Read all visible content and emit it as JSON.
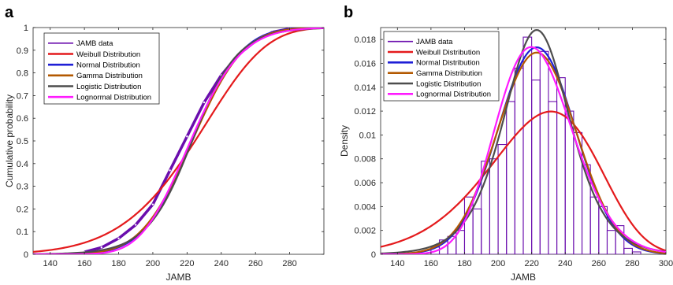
{
  "chart_data": [
    {
      "panel": "a",
      "type": "line",
      "xlabel": "JAMB",
      "ylabel": "Cumulative probability",
      "xlim": [
        130,
        300
      ],
      "ylim": [
        0,
        1
      ],
      "xticks": [
        140,
        160,
        180,
        200,
        220,
        240,
        260,
        280
      ],
      "yticks": [
        0,
        0.1,
        0.2,
        0.3,
        0.4,
        0.5,
        0.6,
        0.7,
        0.8,
        0.9,
        1
      ],
      "legend": "top-left",
      "series": [
        {
          "name": "JAMB data",
          "color": "#6a0dad",
          "kind": "ecdf",
          "x": [
            160,
            170,
            180,
            190,
            200,
            210,
            220,
            230,
            240,
            250,
            260,
            270,
            280,
            290
          ],
          "y": [
            0.01,
            0.03,
            0.07,
            0.13,
            0.22,
            0.37,
            0.52,
            0.67,
            0.79,
            0.88,
            0.94,
            0.98,
            0.995,
            1.0
          ]
        },
        {
          "name": "Weibull Distribution",
          "color": "#e41a1c",
          "kind": "weibull",
          "params": [
            235.8,
            7.6
          ]
        },
        {
          "name": "Normal Distribution",
          "color": "#1f1fd6",
          "kind": "normal",
          "params": [
            223,
            23
          ]
        },
        {
          "name": "Gamma Distribution",
          "color": "#b35900",
          "kind": "normal",
          "params": [
            223,
            23.6
          ]
        },
        {
          "name": "Logistic Distribution",
          "color": "#4d4d4d",
          "kind": "logistic",
          "params": [
            223,
            13.3
          ]
        },
        {
          "name": "Lognormal Distribution",
          "color": "#ff1aff",
          "kind": "lognormal",
          "params": [
            5.403,
            0.104
          ]
        }
      ]
    },
    {
      "panel": "b",
      "type": "bar",
      "xlabel": "JAMB",
      "ylabel": "Density",
      "xlim": [
        130,
        300
      ],
      "ylim": [
        0,
        0.019
      ],
      "xticks": [
        140,
        160,
        180,
        200,
        220,
        240,
        260,
        280,
        300
      ],
      "yticks": [
        0,
        0.002,
        0.004,
        0.006,
        0.008,
        0.01,
        0.012,
        0.014,
        0.016,
        0.018
      ],
      "legend": "top-left",
      "histogram": {
        "name": "JAMB data",
        "color": "#6a0dad",
        "bin_starts": [
          160,
          165,
          170,
          175,
          180,
          185,
          190,
          195,
          200,
          205,
          210,
          215,
          220,
          225,
          230,
          235,
          240,
          245,
          250,
          255,
          260,
          265,
          270,
          275,
          280
        ],
        "bin_width": 5,
        "values": [
          0.0006,
          0.0012,
          0.0015,
          0.002,
          0.0048,
          0.0038,
          0.0078,
          0.008,
          0.0092,
          0.0128,
          0.0156,
          0.0182,
          0.0146,
          0.017,
          0.0128,
          0.0148,
          0.012,
          0.0102,
          0.0075,
          0.0048,
          0.004,
          0.002,
          0.0024,
          0.0005,
          0.0002
        ]
      },
      "series": [
        {
          "name": "JAMB data",
          "color": "#6a0dad",
          "kind": "hist"
        },
        {
          "name": "Weibull Distribution",
          "color": "#e41a1c",
          "kind": "weibull",
          "params": [
            235.8,
            7.6
          ]
        },
        {
          "name": "Normal Distribution",
          "color": "#1f1fd6",
          "kind": "normal",
          "params": [
            223,
            23
          ]
        },
        {
          "name": "Gamma Distribution",
          "color": "#b35900",
          "kind": "normal",
          "params": [
            223,
            23.6
          ]
        },
        {
          "name": "Logistic Distribution",
          "color": "#4d4d4d",
          "kind": "logistic",
          "params": [
            223,
            13.3
          ]
        },
        {
          "name": "Lognormal Distribution",
          "color": "#ff1aff",
          "kind": "lognormal",
          "params": [
            5.403,
            0.104
          ]
        }
      ]
    }
  ]
}
